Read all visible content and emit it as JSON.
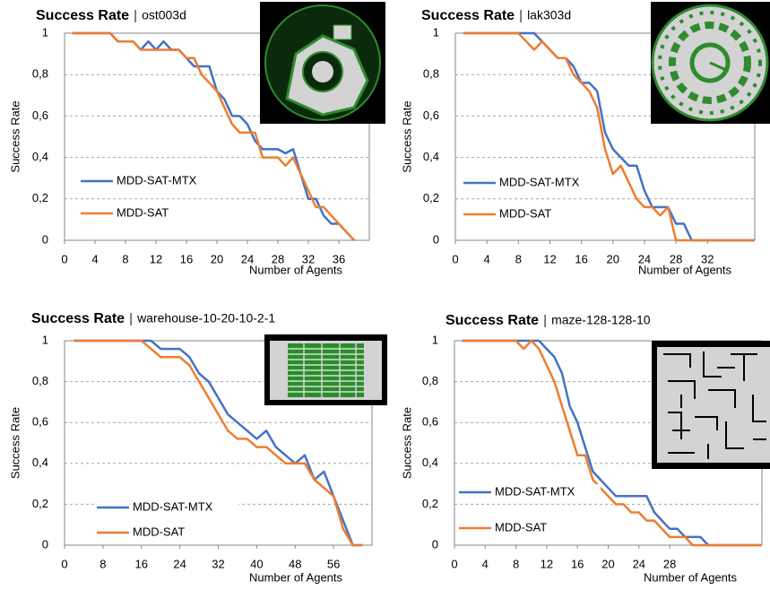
{
  "chart_data": [
    {
      "type": "line",
      "title": "Success Rate",
      "subtitle": "ost003d",
      "ylabel": "Success Rate",
      "xlabel": "Number of Agents",
      "x": [
        1,
        2,
        3,
        4,
        5,
        6,
        7,
        8,
        9,
        10,
        11,
        12,
        13,
        14,
        15,
        16,
        17,
        18,
        19,
        20,
        21,
        22,
        23,
        24,
        25,
        26,
        27,
        28,
        29,
        30,
        31,
        32,
        33,
        34,
        35,
        36,
        37,
        38
      ],
      "series": [
        {
          "name": "MDD-SAT-MTX",
          "color": "#4472c4",
          "values": [
            1,
            1,
            1,
            1,
            1,
            1,
            0.96,
            0.96,
            0.96,
            0.92,
            0.96,
            0.92,
            0.96,
            0.92,
            0.92,
            0.88,
            0.84,
            0.84,
            0.84,
            0.72,
            0.68,
            0.6,
            0.6,
            0.56,
            0.48,
            0.44,
            0.44,
            0.44,
            0.42,
            0.44,
            0.32,
            0.2,
            0.2,
            0.12,
            0.08,
            0.08,
            0.04,
            0
          ]
        },
        {
          "name": "MDD-SAT",
          "color": "#ed7d31",
          "values": [
            1,
            1,
            1,
            1,
            1,
            1,
            0.96,
            0.96,
            0.96,
            0.92,
            0.92,
            0.92,
            0.92,
            0.92,
            0.92,
            0.88,
            0.88,
            0.8,
            0.76,
            0.72,
            0.64,
            0.56,
            0.52,
            0.52,
            0.52,
            0.4,
            0.4,
            0.4,
            0.36,
            0.4,
            0.32,
            0.24,
            0.16,
            0.16,
            0.12,
            0.08,
            0.04,
            0
          ]
        }
      ],
      "xlim": [
        0,
        40
      ],
      "xticks": [
        0,
        4,
        8,
        12,
        16,
        20,
        24,
        28,
        32,
        36
      ],
      "ylim": [
        0,
        1
      ],
      "yticks": [
        0,
        {
          "value": 0.2,
          "label": "0,2"
        },
        {
          "value": 0.4,
          "label": "0,4"
        },
        {
          "value": 0.6,
          "label": "0,6"
        },
        {
          "value": 0.8,
          "label": "0,8"
        },
        1
      ],
      "grid": true,
      "legend": "left"
    },
    {
      "type": "line",
      "title": "Success Rate",
      "subtitle": "lak303d",
      "ylabel": "Success Rate",
      "xlabel": "Number of Agents",
      "x": [
        1,
        2,
        3,
        4,
        5,
        6,
        7,
        8,
        9,
        10,
        11,
        12,
        13,
        14,
        15,
        16,
        17,
        18,
        19,
        20,
        21,
        22,
        23,
        24,
        25,
        26,
        27,
        28,
        29,
        30,
        31,
        32,
        33,
        34,
        35,
        36,
        37,
        38
      ],
      "series": [
        {
          "name": "MDD-SAT-MTX",
          "color": "#4472c4",
          "values": [
            1,
            1,
            1,
            1,
            1,
            1,
            1,
            1,
            1,
            1,
            0.96,
            0.92,
            0.88,
            0.88,
            0.84,
            0.76,
            0.76,
            0.72,
            0.52,
            0.44,
            0.4,
            0.36,
            0.36,
            0.24,
            0.16,
            0.16,
            0.16,
            0.08,
            0.08,
            0,
            0,
            0,
            0,
            0,
            0,
            0,
            0,
            0
          ]
        },
        {
          "name": "MDD-SAT",
          "color": "#ed7d31",
          "values": [
            1,
            1,
            1,
            1,
            1,
            1,
            1,
            1,
            0.96,
            0.92,
            0.96,
            0.92,
            0.88,
            0.88,
            0.8,
            0.76,
            0.72,
            0.64,
            0.44,
            0.32,
            0.36,
            0.28,
            0.2,
            0.16,
            0.16,
            0.12,
            0.16,
            0,
            0,
            0,
            0,
            0,
            0,
            0,
            0,
            0,
            0,
            0
          ]
        }
      ],
      "xlim": [
        0,
        38
      ],
      "xticks": [
        0,
        4,
        8,
        12,
        16,
        20,
        24,
        28,
        32
      ],
      "ylim": [
        0,
        1
      ],
      "yticks": [
        0,
        {
          "value": 0.2,
          "label": "0,2"
        },
        {
          "value": 0.4,
          "label": "0,4"
        },
        {
          "value": 0.6,
          "label": "0,6"
        },
        {
          "value": 0.8,
          "label": "0,8"
        },
        1
      ],
      "grid": true,
      "legend": "left"
    },
    {
      "type": "line",
      "title": "Success Rate",
      "subtitle": "warehouse-10-20-10-2-1",
      "ylabel": "Success Rate",
      "xlabel": "Number of Agents",
      "x": [
        2,
        4,
        6,
        8,
        10,
        12,
        14,
        16,
        18,
        20,
        22,
        24,
        26,
        28,
        30,
        32,
        34,
        36,
        38,
        40,
        42,
        44,
        46,
        48,
        50,
        52,
        54,
        56,
        58,
        60,
        62
      ],
      "series": [
        {
          "name": "MDD-SAT-MTX",
          "color": "#4472c4",
          "values": [
            1,
            1,
            1,
            1,
            1,
            1,
            1,
            1,
            1,
            0.96,
            0.96,
            0.96,
            0.92,
            0.84,
            0.8,
            0.72,
            0.64,
            0.6,
            0.56,
            0.52,
            0.56,
            0.48,
            0.44,
            0.4,
            0.44,
            0.32,
            0.36,
            0.24,
            0.12,
            0,
            0
          ]
        },
        {
          "name": "MDD-SAT",
          "color": "#ed7d31",
          "values": [
            1,
            1,
            1,
            1,
            1,
            1,
            1,
            1,
            0.96,
            0.92,
            0.92,
            0.92,
            0.88,
            0.8,
            0.72,
            0.64,
            0.56,
            0.52,
            0.52,
            0.48,
            0.48,
            0.44,
            0.4,
            0.4,
            0.4,
            0.32,
            0.28,
            0.24,
            0.08,
            0,
            0
          ]
        }
      ],
      "xlim": [
        0,
        64
      ],
      "xticks": [
        0,
        8,
        16,
        24,
        32,
        40,
        48,
        56
      ],
      "ylim": [
        0,
        1
      ],
      "yticks": [
        0,
        {
          "value": 0.2,
          "label": "0,2"
        },
        {
          "value": 0.4,
          "label": "0,4"
        },
        {
          "value": 0.6,
          "label": "0,6"
        },
        {
          "value": 0.8,
          "label": "0,8"
        },
        1
      ],
      "grid": true,
      "legend": "left"
    },
    {
      "type": "line",
      "title": "Success Rate",
      "subtitle": "maze-128-128-10",
      "ylabel": "Success Rate",
      "xlabel": "Number of Agents",
      "x": [
        1,
        2,
        3,
        4,
        5,
        6,
        7,
        8,
        9,
        10,
        11,
        12,
        13,
        14,
        15,
        16,
        17,
        18,
        19,
        20,
        21,
        22,
        23,
        24,
        25,
        26,
        27,
        28,
        29,
        30,
        31,
        32,
        33,
        34,
        35,
        36,
        37,
        38,
        39,
        40
      ],
      "series": [
        {
          "name": "MDD-SAT-MTX",
          "color": "#4472c4",
          "values": [
            1,
            1,
            1,
            1,
            1,
            1,
            1,
            1,
            1,
            1,
            1,
            0.96,
            0.92,
            0.84,
            0.68,
            0.6,
            0.48,
            0.36,
            0.32,
            0.28,
            0.24,
            0.24,
            0.24,
            0.24,
            0.24,
            0.16,
            0.12,
            0.08,
            0.08,
            0.04,
            0.04,
            0.04,
            0,
            0,
            0,
            0,
            0,
            0,
            0,
            0
          ]
        },
        {
          "name": "MDD-SAT",
          "color": "#ed7d31",
          "values": [
            1,
            1,
            1,
            1,
            1,
            1,
            1,
            1,
            0.96,
            1,
            0.96,
            0.88,
            0.8,
            0.68,
            0.56,
            0.44,
            0.44,
            0.32,
            0.28,
            0.24,
            0.2,
            0.2,
            0.16,
            0.16,
            0.12,
            0.12,
            0.08,
            0.04,
            0.04,
            0.04,
            0,
            0,
            0,
            0,
            0,
            0,
            0,
            0,
            0,
            0
          ]
        }
      ],
      "xlim": [
        0,
        40
      ],
      "xticks": [
        0,
        4,
        8,
        12,
        16,
        20,
        24,
        28
      ],
      "ylim": [
        0,
        1
      ],
      "yticks": [
        0,
        {
          "value": 0.2,
          "label": "0,2"
        },
        {
          "value": 0.4,
          "label": "0,4"
        },
        {
          "value": 0.6,
          "label": "0,6"
        },
        {
          "value": 0.8,
          "label": "0,8"
        },
        1
      ],
      "grid": true,
      "legend": "left"
    }
  ]
}
